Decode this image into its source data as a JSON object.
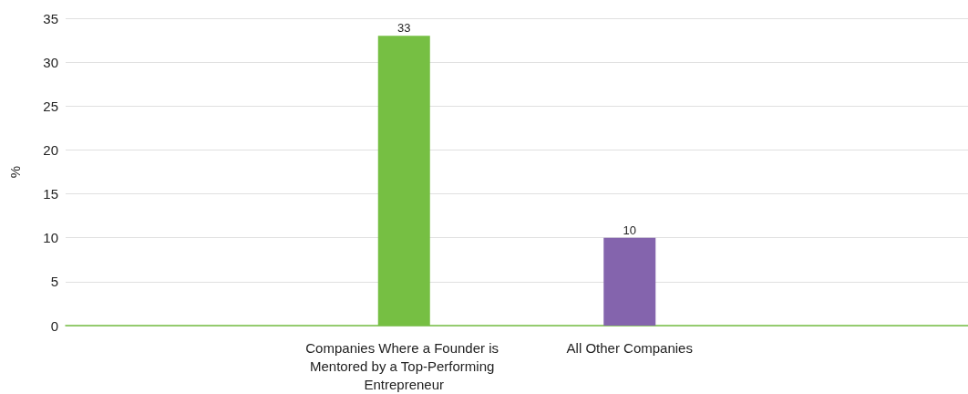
{
  "chart_data": {
    "type": "bar",
    "ylabel": "%",
    "categories": [
      null,
      "Companies Where a Founder is Mentored by a Top-Performing Entrepreneur",
      "All Other Companies",
      null
    ],
    "values": [
      null,
      33,
      10,
      null
    ],
    "colors": [
      "#76bf43",
      "#76bf43",
      "#8464ad",
      "#8464ad"
    ],
    "ylim": [
      0,
      35
    ],
    "yticks": [
      0,
      5,
      10,
      15,
      20,
      25,
      30,
      35
    ],
    "grid": "y",
    "data_labels": true
  }
}
